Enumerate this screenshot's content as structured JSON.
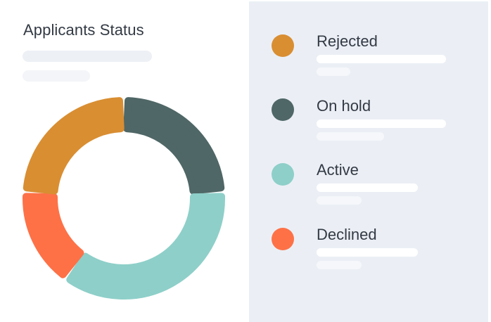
{
  "card": {
    "title": "Applicants Status"
  },
  "colors": {
    "rejected": "#d98e32",
    "on_hold": "#4f6766",
    "active": "#8ecfc9",
    "declined": "#fe7147",
    "panel_bg": "#ebeff5"
  },
  "chart_data": {
    "type": "pie",
    "title": "Applicants Status",
    "categories": [
      "Rejected",
      "On hold",
      "Active",
      "Declined"
    ],
    "values": [
      24,
      24,
      36,
      16
    ],
    "colors": [
      "#d98e32",
      "#4f6766",
      "#8ecfc9",
      "#fe7147"
    ],
    "donut": true,
    "legend": "right"
  },
  "legend": {
    "items": [
      {
        "label": "Rejected"
      },
      {
        "label": "On hold"
      },
      {
        "label": "Active"
      },
      {
        "label": "Declined"
      }
    ]
  }
}
